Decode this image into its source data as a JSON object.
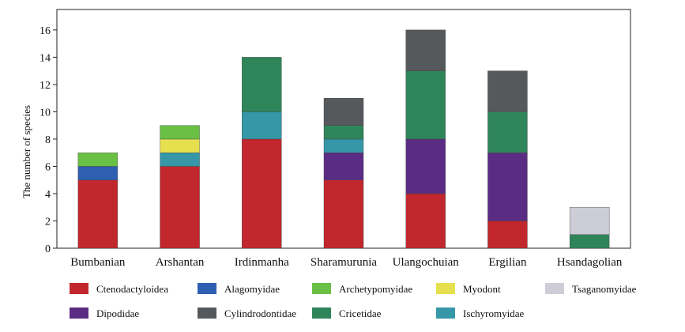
{
  "chart_data": {
    "type": "bar",
    "stacked": true,
    "title": "",
    "xlabel": "",
    "ylabel": "The number of species",
    "ylim": [
      0,
      17.5
    ],
    "yticks": [
      0,
      2,
      4,
      6,
      8,
      10,
      12,
      14,
      16
    ],
    "grid": false,
    "legend_position": "bottom",
    "categories": [
      "Bumbanian",
      "Arshantan",
      "Irdinmanha",
      "Sharamurunia",
      "Ulangochuian",
      "Ergilian",
      "Hsandagolian"
    ],
    "series": [
      {
        "name": "Ctenodactyloidea",
        "color": "#c1272d",
        "values": [
          5,
          6,
          8,
          5,
          4,
          2,
          0
        ]
      },
      {
        "name": "Dipodidae",
        "color": "#5b2c83",
        "values": [
          0,
          0,
          0,
          2,
          4,
          5,
          0
        ]
      },
      {
        "name": "Alagomyidae",
        "color": "#2e5fb0",
        "values": [
          1,
          0,
          0,
          0,
          0,
          0,
          0
        ]
      },
      {
        "name": "Ischyromyidae",
        "color": "#3597a8",
        "values": [
          0,
          1,
          2,
          1,
          0,
          0,
          0
        ]
      },
      {
        "name": "Myodont",
        "color": "#e6e04f",
        "values": [
          0,
          1,
          0,
          0,
          0,
          0,
          0
        ]
      },
      {
        "name": "Archetypomyidae",
        "color": "#6abf45",
        "values": [
          1,
          1,
          0,
          0,
          0,
          0,
          0
        ]
      },
      {
        "name": "Cricetidae",
        "color": "#2f855a",
        "values": [
          0,
          0,
          4,
          1,
          5,
          3,
          1
        ]
      },
      {
        "name": "Cylindrodontidae",
        "color": "#56595c",
        "values": [
          0,
          0,
          0,
          2,
          3,
          3,
          0
        ]
      },
      {
        "name": "Tsaganomyidae",
        "color": "#cdcdd8",
        "values": [
          0,
          0,
          0,
          0,
          0,
          0,
          2
        ]
      }
    ],
    "legend_rows": [
      [
        "Ctenodactyloidea",
        "Alagomyidae",
        "Archetypomyidae",
        "Myodont",
        "Tsaganomyidae"
      ],
      [
        "Dipodidae",
        "Cylindrodontidae",
        "Cricetidae",
        "Ischyromyidae"
      ]
    ]
  }
}
